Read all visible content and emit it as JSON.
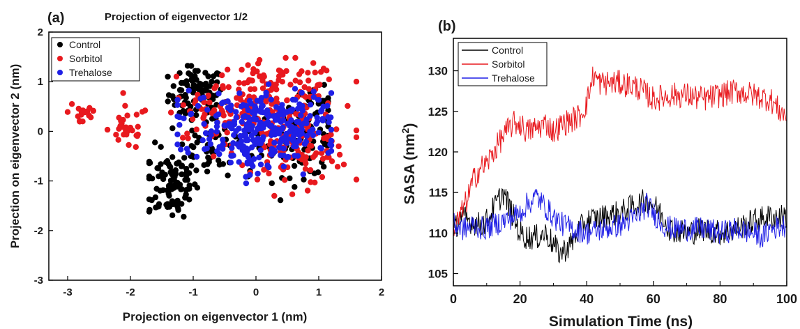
{
  "chart_data": [
    {
      "panel_label": "(a)",
      "type": "scatter",
      "title": "Projection of eigenvector 1/2",
      "xlabel": "Projection on eigenvector 1 (nm)",
      "ylabel": "Projection on eigenvector 2 (nm)",
      "xlim": [
        -3.3,
        2.0
      ],
      "ylim": [
        -3,
        2
      ],
      "xticks": [
        -3,
        -2,
        -1,
        0,
        1,
        2
      ],
      "yticks": [
        -3,
        -2,
        -1,
        0,
        1,
        2
      ],
      "grid": false,
      "legend_position": "top-left",
      "series": [
        {
          "name": "Control",
          "color": "#000000",
          "clusters": [
            {
              "cx": -0.95,
              "cy": 0.75,
              "sx": 0.22,
              "sy": 0.28,
              "n": 90
            },
            {
              "cx": -1.35,
              "cy": -1.05,
              "sx": 0.22,
              "sy": 0.38,
              "n": 90
            },
            {
              "cx": -0.7,
              "cy": -0.35,
              "sx": 0.35,
              "sy": 0.35,
              "n": 60
            },
            {
              "cx": 0.75,
              "cy": -0.2,
              "sx": 0.35,
              "sy": 0.35,
              "n": 70
            },
            {
              "cx": 0.95,
              "cy": 0.35,
              "sx": 0.22,
              "sy": 0.3,
              "n": 30
            }
          ],
          "range": {
            "x": [
              -1.7,
              1.15
            ],
            "y": [
              -1.72,
              1.32
            ]
          }
        },
        {
          "name": "Sorbitol",
          "color": "#e8191e",
          "clusters": [
            {
              "cx": -2.75,
              "cy": 0.4,
              "sx": 0.13,
              "sy": 0.18,
              "n": 18
            },
            {
              "cx": -2.05,
              "cy": 0.05,
              "sx": 0.15,
              "sy": 0.22,
              "n": 28
            },
            {
              "cx": 0.3,
              "cy": 0.8,
              "sx": 0.55,
              "sy": 0.3,
              "n": 120
            },
            {
              "cx": 0.55,
              "cy": -0.3,
              "sx": 0.45,
              "sy": 0.4,
              "n": 130
            },
            {
              "cx": -0.6,
              "cy": 0.35,
              "sx": 0.4,
              "sy": 0.3,
              "n": 50
            }
          ],
          "range": {
            "x": [
              -3.0,
              1.6
            ],
            "y": [
              -1.3,
              1.48
            ]
          }
        },
        {
          "name": "Trehalose",
          "color": "#1f1fe6",
          "clusters": [
            {
              "cx": -0.15,
              "cy": 0.15,
              "sx": 0.55,
              "sy": 0.35,
              "n": 160
            },
            {
              "cx": 0.5,
              "cy": 0.05,
              "sx": 0.5,
              "sy": 0.35,
              "n": 110
            },
            {
              "cx": -0.2,
              "cy": -0.45,
              "sx": 0.3,
              "sy": 0.25,
              "n": 40
            }
          ],
          "range": {
            "x": [
              -1.25,
              1.2
            ],
            "y": [
              -1.05,
              0.95
            ]
          }
        }
      ]
    },
    {
      "panel_label": "(b)",
      "type": "line",
      "title": "",
      "xlabel": "Simulation Time (ns)",
      "ylabel": "SASA (nm",
      "ylabel_superscript": "2",
      "ylabel_close": ")",
      "xlim": [
        0,
        100
      ],
      "ylim": [
        103.5,
        134
      ],
      "xticks": [
        0,
        20,
        40,
        60,
        80,
        100
      ],
      "yticks": [
        105,
        110,
        115,
        120,
        125,
        130
      ],
      "grid": false,
      "legend_position": "top-left",
      "series": [
        {
          "name": "Control",
          "color": "#000000",
          "x": [
            0,
            2,
            5,
            8,
            10,
            12,
            15,
            18,
            20,
            22,
            25,
            28,
            30,
            32,
            35,
            38,
            40,
            45,
            50,
            55,
            58,
            60,
            63,
            65,
            70,
            75,
            80,
            85,
            90,
            95,
            100
          ],
          "y": [
            110,
            112,
            111.5,
            111,
            111.5,
            113,
            115,
            112,
            110,
            109.5,
            109.5,
            110,
            108.5,
            107.5,
            108.5,
            110.5,
            111.5,
            112,
            112.5,
            113.5,
            114,
            113.5,
            112,
            110.5,
            110,
            110.5,
            110,
            110.5,
            111.5,
            112,
            112
          ]
        },
        {
          "name": "Sorbitol",
          "color": "#e8191e",
          "x": [
            0,
            2,
            4,
            6,
            8,
            10,
            12,
            15,
            18,
            20,
            22,
            25,
            28,
            30,
            33,
            36,
            38,
            40,
            42,
            44,
            46,
            50,
            55,
            60,
            65,
            70,
            75,
            80,
            85,
            90,
            95,
            98,
            100
          ],
          "y": [
            110.5,
            112,
            114,
            116.5,
            118,
            118.5,
            120,
            122,
            123.5,
            123.5,
            122.5,
            123,
            123.5,
            122.5,
            123.5,
            124,
            124.5,
            126,
            129.5,
            128.5,
            128.5,
            128.5,
            128,
            126.5,
            127,
            127,
            126.5,
            127,
            127.5,
            127,
            126.5,
            125,
            124.5
          ]
        },
        {
          "name": "Trehalose",
          "color": "#1f1fe6",
          "x": [
            0,
            3,
            6,
            9,
            12,
            15,
            18,
            20,
            22,
            25,
            27,
            30,
            33,
            36,
            40,
            45,
            50,
            55,
            58,
            60,
            63,
            66,
            70,
            75,
            80,
            85,
            90,
            93,
            95,
            100
          ],
          "y": [
            111,
            110.5,
            111,
            110.5,
            111,
            111.5,
            112,
            112.5,
            113.5,
            114.5,
            113.5,
            112,
            111,
            110.5,
            110,
            110.5,
            111,
            112,
            113.5,
            112.5,
            111,
            110.5,
            110.5,
            110.5,
            110,
            110.5,
            110,
            109.5,
            110.5,
            111
          ]
        }
      ]
    }
  ]
}
